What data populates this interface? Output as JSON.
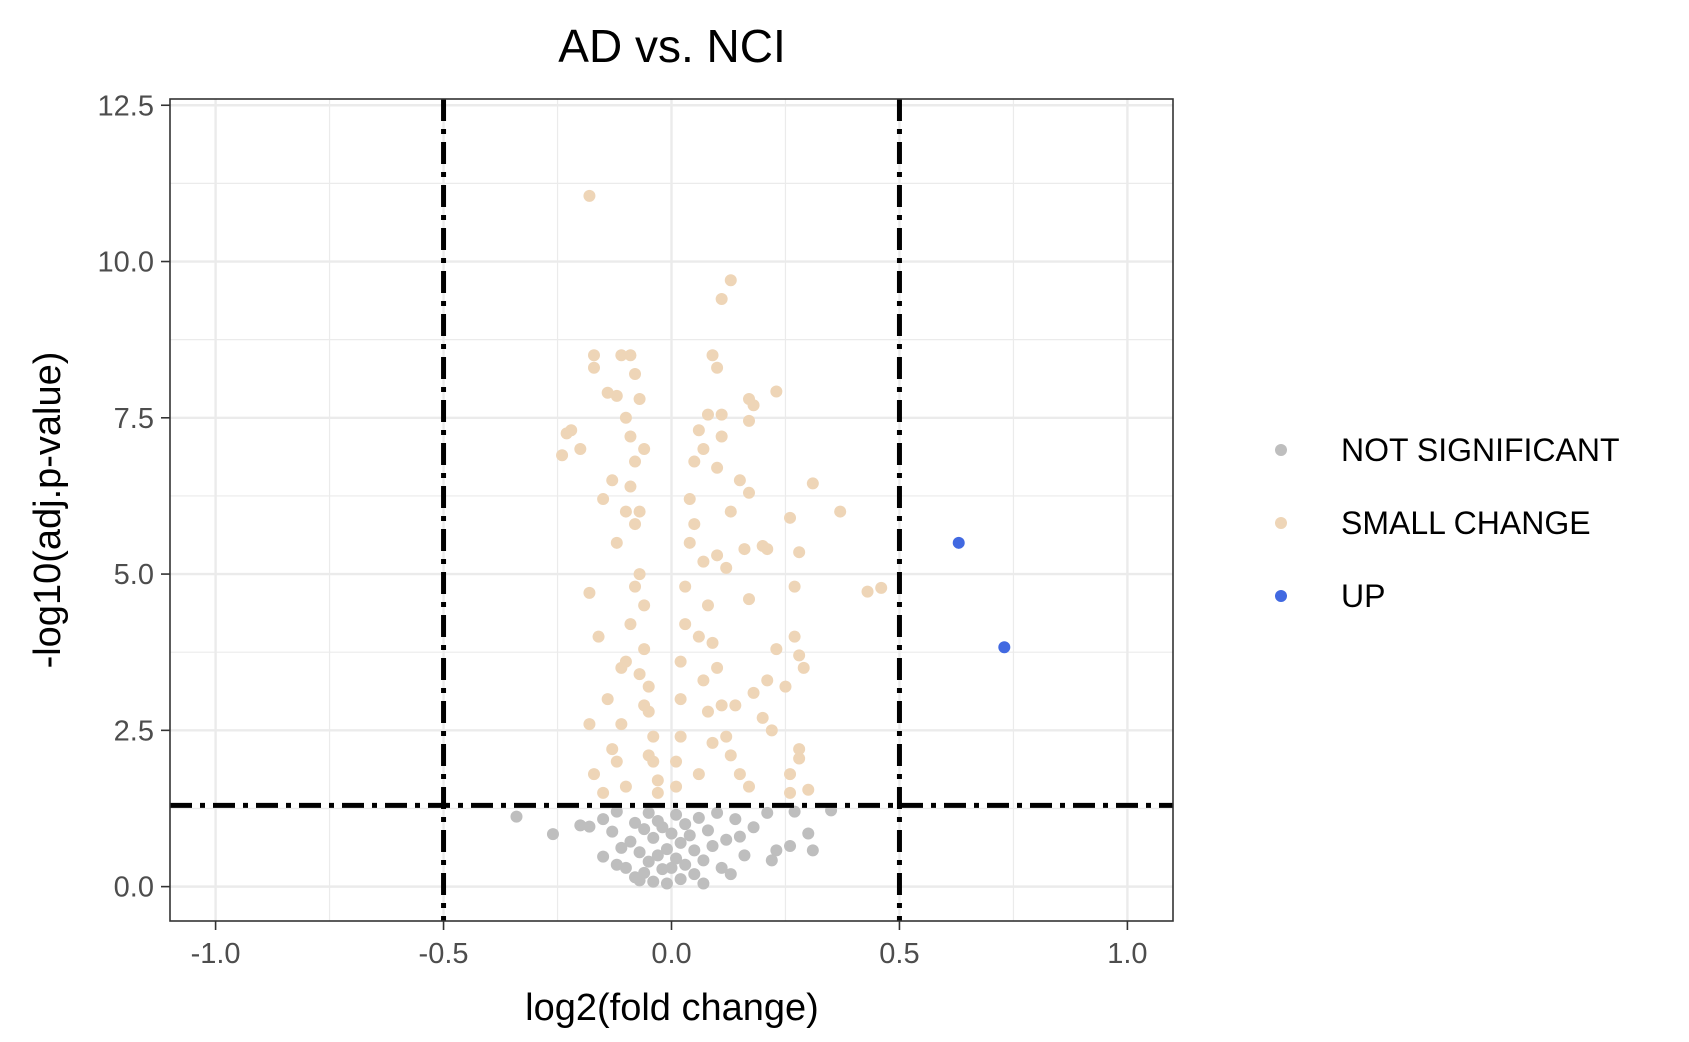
{
  "chart_data": {
    "type": "scatter",
    "title": "AD vs. NCI",
    "xlabel": "log2(fold change)",
    "ylabel": "-log10(adj.p-value)",
    "xlim": [
      -1.1,
      1.1
    ],
    "ylim": [
      -0.55,
      12.6
    ],
    "xticks": [
      -1.0,
      -0.5,
      0.0,
      0.5,
      1.0
    ],
    "xtick_labels": [
      "-1.0",
      "-0.5",
      "0.0",
      "0.5",
      "1.0"
    ],
    "yticks": [
      0.0,
      2.5,
      5.0,
      7.5,
      10.0,
      12.5
    ],
    "ytick_labels": [
      "0.0",
      "2.5",
      "5.0",
      "7.5",
      "10.0",
      "12.5"
    ],
    "grid": true,
    "legend_position": "right",
    "thresholds": {
      "vlines": [
        -0.5,
        0.5
      ],
      "hline": 1.3,
      "style": "dot-dash"
    },
    "series": [
      {
        "name": "NOT SIGNIFICANT",
        "color": "#bebebe",
        "points": [
          [
            -0.34,
            1.12
          ],
          [
            -0.26,
            0.84
          ],
          [
            -0.2,
            0.98
          ],
          [
            -0.18,
            0.96
          ],
          [
            -0.15,
            1.08
          ],
          [
            -0.15,
            0.48
          ],
          [
            -0.13,
            0.88
          ],
          [
            -0.12,
            1.2
          ],
          [
            -0.11,
            0.62
          ],
          [
            -0.1,
            0.3
          ],
          [
            -0.09,
            0.72
          ],
          [
            -0.08,
            1.02
          ],
          [
            -0.08,
            0.15
          ],
          [
            -0.07,
            0.55
          ],
          [
            -0.06,
            0.92
          ],
          [
            -0.06,
            0.22
          ],
          [
            -0.05,
            1.18
          ],
          [
            -0.05,
            0.4
          ],
          [
            -0.04,
            0.78
          ],
          [
            -0.04,
            0.08
          ],
          [
            -0.03,
            1.05
          ],
          [
            -0.03,
            0.5
          ],
          [
            -0.02,
            0.28
          ],
          [
            -0.02,
            0.95
          ],
          [
            -0.01,
            0.6
          ],
          [
            -0.01,
            0.05
          ],
          [
            0.0,
            0.85
          ],
          [
            0.0,
            0.3
          ],
          [
            0.01,
            1.15
          ],
          [
            0.01,
            0.45
          ],
          [
            0.02,
            0.7
          ],
          [
            0.02,
            0.12
          ],
          [
            0.03,
            1.0
          ],
          [
            0.03,
            0.35
          ],
          [
            0.04,
            0.82
          ],
          [
            0.05,
            0.58
          ],
          [
            0.05,
            0.2
          ],
          [
            0.06,
            1.1
          ],
          [
            0.07,
            0.42
          ],
          [
            0.08,
            0.9
          ],
          [
            0.09,
            0.65
          ],
          [
            0.1,
            1.18
          ],
          [
            0.11,
            0.3
          ],
          [
            0.12,
            0.75
          ],
          [
            0.14,
            1.08
          ],
          [
            0.16,
            0.5
          ],
          [
            0.18,
            0.95
          ],
          [
            0.21,
            1.18
          ],
          [
            0.22,
            0.42
          ],
          [
            0.23,
            0.58
          ],
          [
            0.26,
            0.65
          ],
          [
            0.27,
            1.2
          ],
          [
            0.3,
            0.85
          ],
          [
            0.31,
            0.58
          ],
          [
            0.35,
            1.22
          ],
          [
            0.13,
            0.2
          ],
          [
            -0.12,
            0.35
          ],
          [
            0.07,
            0.05
          ],
          [
            -0.07,
            0.1
          ],
          [
            0.15,
            0.8
          ]
        ]
      },
      {
        "name": "SMALL CHANGE",
        "color": "#eed5b7",
        "points": [
          [
            -0.18,
            11.05
          ],
          [
            -0.09,
            8.5
          ],
          [
            -0.11,
            8.5
          ],
          [
            -0.17,
            8.5
          ],
          [
            -0.17,
            8.3
          ],
          [
            -0.14,
            7.9
          ],
          [
            -0.12,
            7.85
          ],
          [
            -0.22,
            7.3
          ],
          [
            -0.23,
            7.25
          ],
          [
            -0.24,
            6.9
          ],
          [
            -0.2,
            7.0
          ],
          [
            -0.15,
            6.2
          ],
          [
            -0.18,
            4.7
          ],
          [
            -0.16,
            4.0
          ],
          [
            -0.13,
            6.5
          ],
          [
            -0.12,
            5.5
          ],
          [
            -0.11,
            3.5
          ],
          [
            -0.14,
            3.0
          ],
          [
            -0.18,
            2.6
          ],
          [
            -0.17,
            1.8
          ],
          [
            -0.15,
            1.5
          ],
          [
            -0.13,
            2.2
          ],
          [
            -0.1,
            7.5
          ],
          [
            -0.09,
            7.2
          ],
          [
            -0.08,
            6.8
          ],
          [
            -0.07,
            6.0
          ],
          [
            -0.07,
            5.0
          ],
          [
            -0.06,
            4.5
          ],
          [
            -0.06,
            3.8
          ],
          [
            -0.05,
            3.2
          ],
          [
            -0.05,
            2.8
          ],
          [
            -0.04,
            2.4
          ],
          [
            -0.04,
            2.0
          ],
          [
            -0.03,
            1.7
          ],
          [
            -0.03,
            1.5
          ],
          [
            -0.08,
            5.8
          ],
          [
            -0.09,
            4.2
          ],
          [
            -0.1,
            3.6
          ],
          [
            -0.11,
            2.6
          ],
          [
            -0.12,
            2.0
          ],
          [
            -0.08,
            8.2
          ],
          [
            -0.07,
            7.8
          ],
          [
            -0.06,
            7.0
          ],
          [
            -0.09,
            6.4
          ],
          [
            -0.1,
            6.0
          ],
          [
            -0.08,
            4.8
          ],
          [
            -0.07,
            3.4
          ],
          [
            -0.06,
            2.9
          ],
          [
            -0.05,
            2.1
          ],
          [
            -0.1,
            1.6
          ],
          [
            0.13,
            9.7
          ],
          [
            0.11,
            9.4
          ],
          [
            0.09,
            8.5
          ],
          [
            0.1,
            8.3
          ],
          [
            0.23,
            7.92
          ],
          [
            0.17,
            7.8
          ],
          [
            0.18,
            7.7
          ],
          [
            0.11,
            7.55
          ],
          [
            0.08,
            7.55
          ],
          [
            0.17,
            7.45
          ],
          [
            0.06,
            7.3
          ],
          [
            0.11,
            7.2
          ],
          [
            0.07,
            7.0
          ],
          [
            0.1,
            6.7
          ],
          [
            0.15,
            6.5
          ],
          [
            0.31,
            6.45
          ],
          [
            0.17,
            6.3
          ],
          [
            0.13,
            6.0
          ],
          [
            0.37,
            6.0
          ],
          [
            0.26,
            5.9
          ],
          [
            0.1,
            5.3
          ],
          [
            0.12,
            5.1
          ],
          [
            0.16,
            5.4
          ],
          [
            0.2,
            5.45
          ],
          [
            0.21,
            5.4
          ],
          [
            0.28,
            5.35
          ],
          [
            0.27,
            4.8
          ],
          [
            0.43,
            4.72
          ],
          [
            0.46,
            4.78
          ],
          [
            0.17,
            4.6
          ],
          [
            0.23,
            3.8
          ],
          [
            0.27,
            4.0
          ],
          [
            0.28,
            3.7
          ],
          [
            0.29,
            3.5
          ],
          [
            0.21,
            3.3
          ],
          [
            0.25,
            3.2
          ],
          [
            0.18,
            3.1
          ],
          [
            0.14,
            2.9
          ],
          [
            0.2,
            2.7
          ],
          [
            0.22,
            2.5
          ],
          [
            0.28,
            2.2
          ],
          [
            0.28,
            2.05
          ],
          [
            0.26,
            1.8
          ],
          [
            0.3,
            1.55
          ],
          [
            0.26,
            1.5
          ],
          [
            0.05,
            6.8
          ],
          [
            0.04,
            6.2
          ],
          [
            0.04,
            5.5
          ],
          [
            0.03,
            4.8
          ],
          [
            0.03,
            4.2
          ],
          [
            0.02,
            3.6
          ],
          [
            0.02,
            3.0
          ],
          [
            0.02,
            2.4
          ],
          [
            0.01,
            2.0
          ],
          [
            0.01,
            1.6
          ],
          [
            0.06,
            4.0
          ],
          [
            0.07,
            3.3
          ],
          [
            0.08,
            2.8
          ],
          [
            0.09,
            2.3
          ],
          [
            0.06,
            1.8
          ],
          [
            0.05,
            5.8
          ],
          [
            0.07,
            5.2
          ],
          [
            0.08,
            4.5
          ],
          [
            0.09,
            3.9
          ],
          [
            0.1,
            3.5
          ],
          [
            0.11,
            2.9
          ],
          [
            0.12,
            2.4
          ],
          [
            0.13,
            2.1
          ],
          [
            0.15,
            1.8
          ],
          [
            0.17,
            1.6
          ]
        ]
      },
      {
        "name": "UP",
        "color": "#4169e1",
        "points": [
          [
            0.63,
            5.5
          ],
          [
            0.73,
            3.83
          ]
        ]
      }
    ]
  }
}
